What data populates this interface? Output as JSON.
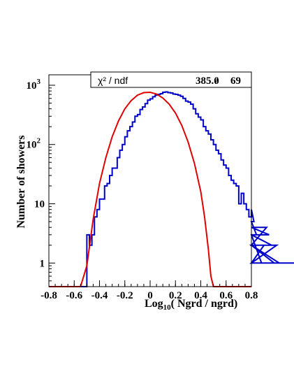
{
  "chart_data": {
    "type": "histogram",
    "title": "",
    "xlabel": "Log",
    "xlabel_sub": "10",
    "xlabel_rest": "( Ngrd / ngrd)",
    "ylabel": "Number of showers",
    "xlim": [
      -0.8,
      0.8
    ],
    "ylim": [
      0.4,
      1500
    ],
    "yscale": "log",
    "grid": false,
    "x_ticks": [
      "-0.8",
      "-0.6",
      "-0.4",
      "-0.2",
      "0",
      "0.2",
      "0.4",
      "0.6",
      "0.8"
    ],
    "y_ticks": [
      {
        "value": 1,
        "base": "1",
        "exp": ""
      },
      {
        "value": 10,
        "base": "10",
        "exp": ""
      },
      {
        "value": 100,
        "base": "10",
        "exp": "2"
      },
      {
        "value": 1000,
        "base": "10",
        "exp": "3"
      }
    ],
    "stats_box": {
      "label": "χ² / ndf",
      "chi2": "385.0",
      "sep": "/",
      "ndf": "69"
    },
    "series": [
      {
        "type": "histogram",
        "color": "#0000cc",
        "bin_width": 0.02,
        "x_start": -0.5,
        "values": [
          3,
          2,
          3,
          6,
          8,
          12,
          12,
          20,
          22,
          30,
          40,
          40,
          60,
          80,
          100,
          135,
          170,
          200,
          240,
          300,
          320,
          390,
          430,
          490,
          560,
          590,
          640,
          680,
          700,
          720,
          760,
          770,
          750,
          740,
          710,
          700,
          680,
          650,
          600,
          540,
          520,
          480,
          400,
          330,
          290,
          260,
          200,
          170,
          150,
          120,
          100,
          80,
          70,
          55,
          45,
          40,
          30,
          25,
          22,
          20,
          10,
          15,
          10,
          8,
          6,
          8,
          5,
          3,
          3,
          1,
          2,
          4,
          3,
          2,
          1,
          2,
          1,
          1,
          1,
          1,
          1,
          1,
          1,
          1,
          1
        ]
      },
      {
        "type": "line",
        "color": "#e00000",
        "name": "",
        "x": [
          -0.55,
          -0.5,
          -0.45,
          -0.4,
          -0.35,
          -0.3,
          -0.25,
          -0.2,
          -0.15,
          -0.1,
          -0.05,
          0.0,
          0.05,
          0.1,
          0.15,
          0.2,
          0.25,
          0.3,
          0.35,
          0.4,
          0.43,
          0.46,
          0.48,
          0.5
        ],
        "y": [
          0.1,
          0.9,
          5.5,
          22,
          60,
          135,
          250,
          400,
          550,
          680,
          750,
          760,
          710,
          610,
          480,
          340,
          210,
          110,
          48,
          16,
          6,
          1.7,
          0.6,
          0.15
        ]
      }
    ]
  }
}
